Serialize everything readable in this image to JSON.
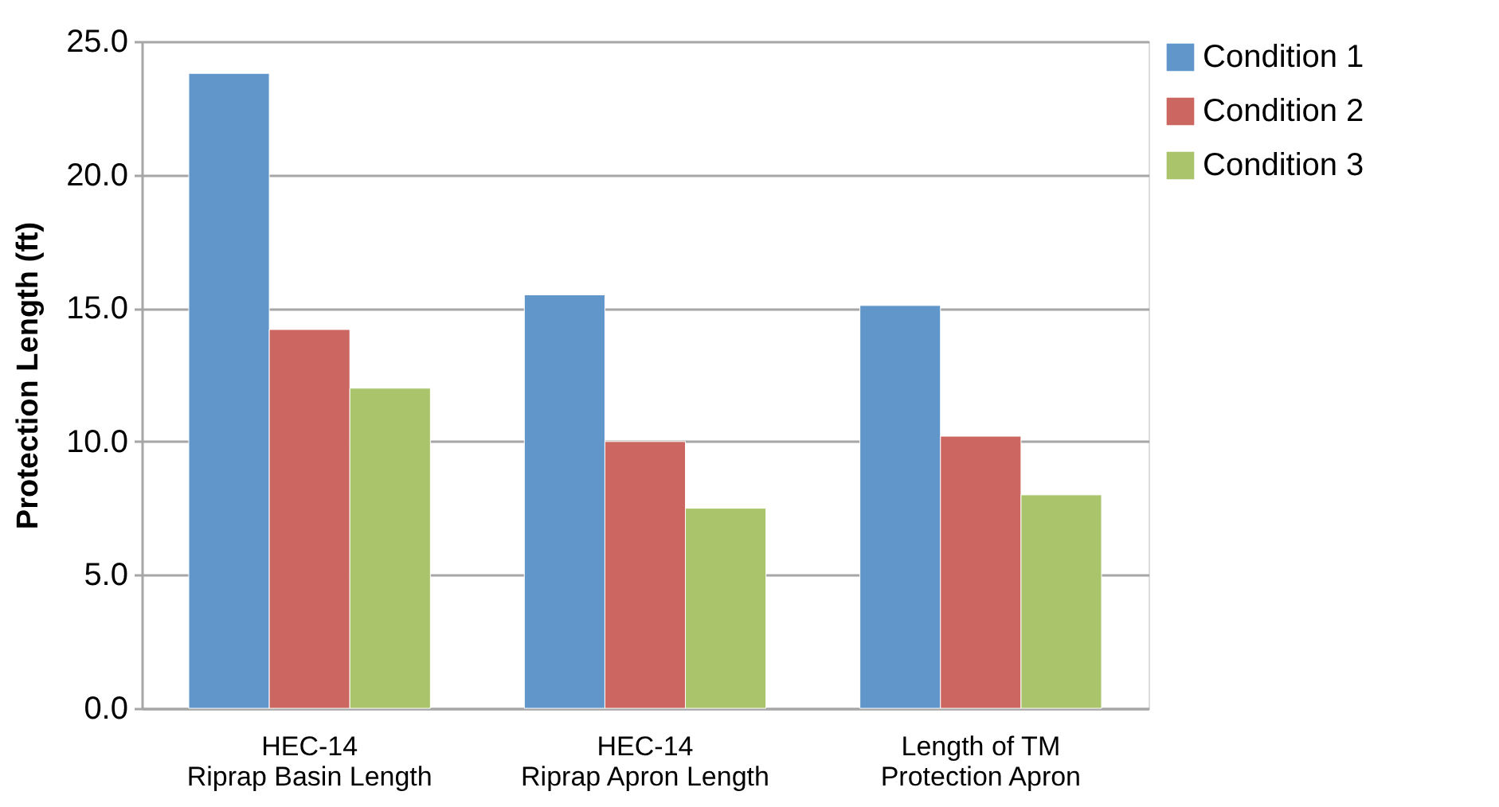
{
  "chart_data": {
    "type": "bar",
    "ylabel": "Protection Length (ft)",
    "categories": [
      "HEC-14\nRiprap Basin Length",
      "HEC-14\nRiprap Apron Length",
      "Length of TM\nProtection Apron"
    ],
    "series": [
      {
        "name": "Condition 1",
        "color": "#6096c9",
        "values": [
          23.8,
          15.5,
          15.1
        ]
      },
      {
        "name": "Condition 2",
        "color": "#cc6660",
        "values": [
          14.2,
          10.0,
          10.2
        ]
      },
      {
        "name": "Condition 3",
        "color": "#aac46b",
        "values": [
          12.0,
          7.5,
          8.0
        ]
      }
    ],
    "ylim": [
      0,
      25
    ],
    "yticks": [
      {
        "value": 0,
        "label": "0.0"
      },
      {
        "value": 5,
        "label": "5.0"
      },
      {
        "value": 10,
        "label": "10.0"
      },
      {
        "value": 15,
        "label": "15.0"
      },
      {
        "value": 20,
        "label": "20.0"
      },
      {
        "value": 25,
        "label": "25.0"
      }
    ],
    "grid": "y",
    "legend": "right"
  }
}
